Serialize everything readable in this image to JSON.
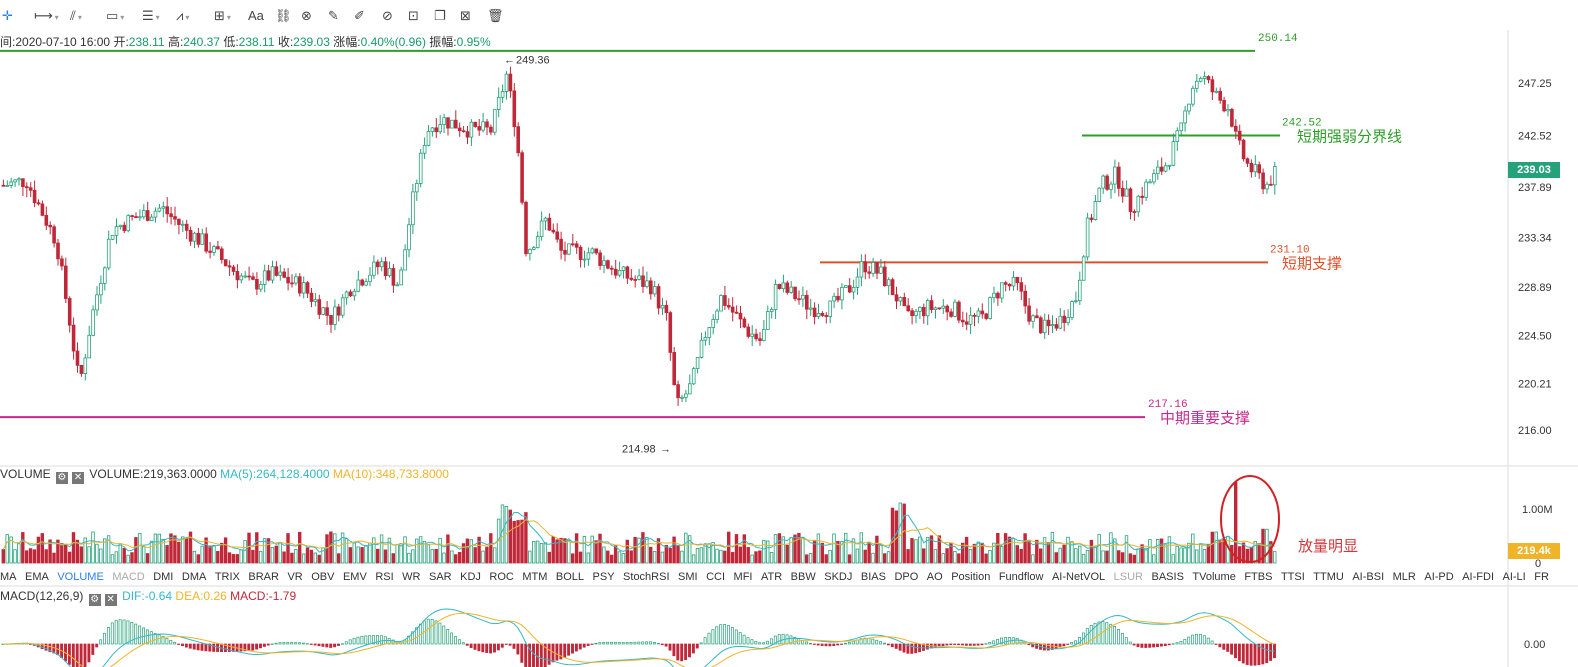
{
  "toolbar": {
    "tools": [
      {
        "name": "crosshair-icon",
        "glyph": "✛",
        "active": true
      },
      {
        "name": "ray-line-icon",
        "glyph": "⟼",
        "caret": true
      },
      {
        "name": "trend-lines-icon",
        "glyph": "⫽",
        "caret": true
      },
      {
        "name": "rectangle-icon",
        "glyph": "▭",
        "caret": true
      },
      {
        "name": "parallel-lines-icon",
        "glyph": "☰",
        "caret": true
      },
      {
        "name": "wave-pattern-icon",
        "glyph": "⩘",
        "caret": true
      },
      {
        "name": "measure-grid-icon",
        "glyph": "⊞",
        "caret": true
      },
      {
        "name": "text-tool-icon",
        "glyph": "Aa"
      },
      {
        "name": "pattern-tool-icon",
        "glyph": "⛓"
      },
      {
        "name": "magnet-icon",
        "glyph": "⊗"
      },
      {
        "name": "ruler-icon",
        "glyph": "✎"
      },
      {
        "name": "pen-icon",
        "glyph": "✐"
      },
      {
        "name": "eye-icon",
        "glyph": "⊘"
      },
      {
        "name": "lock-icon",
        "glyph": "⊡"
      },
      {
        "name": "copy-icon",
        "glyph": "❐"
      },
      {
        "name": "image-icon",
        "glyph": "⊠"
      },
      {
        "name": "trash-icon",
        "glyph": "🗑"
      }
    ]
  },
  "info": {
    "time_label": "间:",
    "time": "2020-07-10 16:00",
    "open_label": "开:",
    "open": "238.11",
    "high_label": "高:",
    "high": "240.37",
    "low_label": "低:",
    "low": "238.11",
    "close_label": "收:",
    "close": "239.03",
    "chg_label": "涨幅:",
    "chg": "0.40%(0.96)",
    "amp_label": "振幅:",
    "amp": "0.95%"
  },
  "price_axis": {
    "labels": [
      "247.25",
      "242.52",
      "237.89",
      "233.34",
      "228.89",
      "224.50",
      "220.21",
      "216.00"
    ],
    "current_price": "239.03"
  },
  "markers": {
    "high": "249.36",
    "low": "214.98"
  },
  "levels": [
    {
      "value": "250.14",
      "color": "#2e9e28",
      "label": ""
    },
    {
      "value": "242.52",
      "color": "#2e9e28",
      "label": "短期强弱分界线"
    },
    {
      "value": "231.10",
      "color": "#e0502a",
      "label": "短期支撑"
    },
    {
      "value": "217.16",
      "color": "#c42a8c",
      "label": "中期重要支撑"
    }
  ],
  "volume": {
    "title": "VOLUME",
    "value": "VOLUME:219,363.0000",
    "ma5": "MA(5):264,128.4000",
    "ma10": "MA(10):348,733.8000",
    "axis": [
      "1.00M",
      "0"
    ],
    "current": "219.4k",
    "annotation": "放量明显"
  },
  "indicator_tabs": [
    {
      "label": "MA"
    },
    {
      "label": "EMA"
    },
    {
      "label": "VOLUME",
      "state": "active"
    },
    {
      "label": "MACD",
      "state": "dim"
    },
    {
      "label": "DMI"
    },
    {
      "label": "DMA"
    },
    {
      "label": "TRIX"
    },
    {
      "label": "BRAR"
    },
    {
      "label": "VR"
    },
    {
      "label": "OBV"
    },
    {
      "label": "EMV"
    },
    {
      "label": "RSI"
    },
    {
      "label": "WR"
    },
    {
      "label": "SAR"
    },
    {
      "label": "KDJ"
    },
    {
      "label": "ROC"
    },
    {
      "label": "MTM"
    },
    {
      "label": "BOLL"
    },
    {
      "label": "PSY"
    },
    {
      "label": "StochRSI"
    },
    {
      "label": "SMI"
    },
    {
      "label": "CCI"
    },
    {
      "label": "MFI"
    },
    {
      "label": "ATR"
    },
    {
      "label": "BBW"
    },
    {
      "label": "SKDJ"
    },
    {
      "label": "BIAS"
    },
    {
      "label": "DPO"
    },
    {
      "label": "AO"
    },
    {
      "label": "Position"
    },
    {
      "label": "Fundflow"
    },
    {
      "label": "AI-NetVOL"
    },
    {
      "label": "LSUR",
      "state": "dim"
    },
    {
      "label": "BASIS"
    },
    {
      "label": "TVolume"
    },
    {
      "label": "FTBS"
    },
    {
      "label": "TTSI"
    },
    {
      "label": "TTMU"
    },
    {
      "label": "AI-BSI"
    },
    {
      "label": "MLR"
    },
    {
      "label": "AI-PD"
    },
    {
      "label": "AI-FDI"
    },
    {
      "label": "AI-LI"
    },
    {
      "label": "FR"
    }
  ],
  "macd": {
    "title": "MACD(12,26,9)",
    "dif": "DIF:-0.64",
    "dea": "DEA:0.26",
    "macd": "MACD:-1.79",
    "axis": "0.00"
  },
  "colors": {
    "up": "#26a27a",
    "down": "#c0283a",
    "ma5": "#35b8c8",
    "ma10": "#f0b429",
    "price_tag": "#26a27a",
    "vol_tag": "#f0b429",
    "circle": "#d42020"
  }
}
